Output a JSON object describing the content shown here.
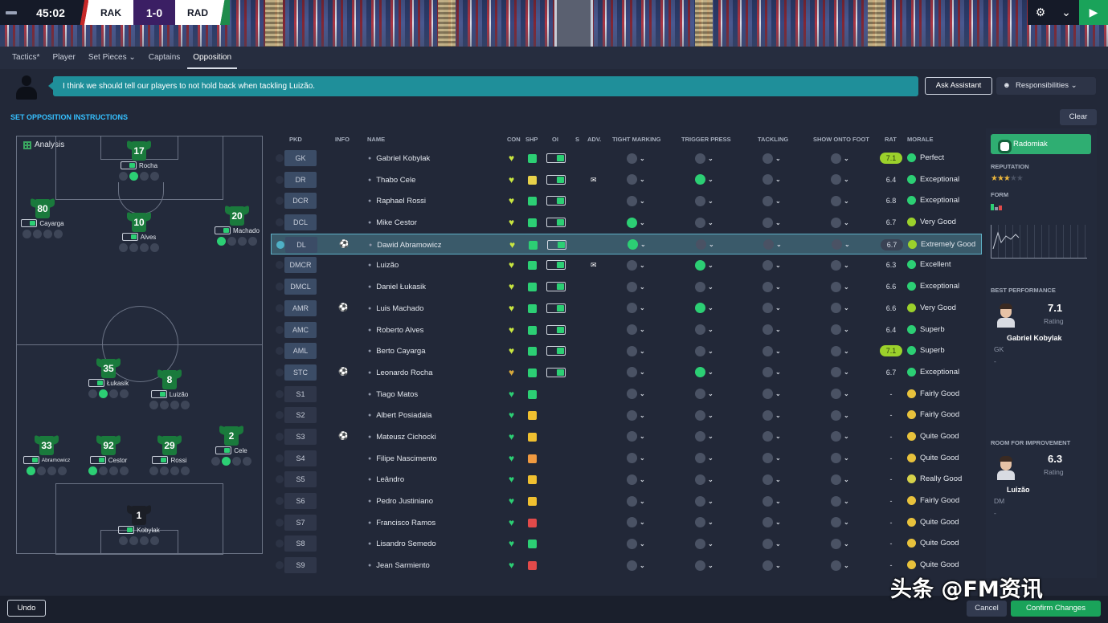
{
  "scorebar": {
    "time": "45:02",
    "home": "RAK",
    "score": "1-0",
    "away": "RAD"
  },
  "tabs": [
    "Tactics*",
    "Player",
    "Set Pieces ⌄",
    "Captains",
    "Opposition"
  ],
  "assistant": {
    "message": "I think we should tell our players to not hold back when tackling Luizão.",
    "ask_label": "Ask Assistant",
    "responsibilities_label": "Responsibilities ⌄"
  },
  "section_title": "SET OPPOSITION INSTRUCTIONS",
  "clear_label": "Clear",
  "pitch": {
    "label": "Analysis",
    "players": [
      {
        "num": "17",
        "name": "Rocha"
      },
      {
        "num": "80",
        "name": "Cayarga"
      },
      {
        "num": "10",
        "name": "Alves"
      },
      {
        "num": "20",
        "name": "Machado"
      },
      {
        "num": "35",
        "name": "Łukasik"
      },
      {
        "num": "8",
        "name": "Luizão"
      },
      {
        "num": "33",
        "name": "Abramowicz"
      },
      {
        "num": "92",
        "name": "Cestor"
      },
      {
        "num": "29",
        "name": "Rossi"
      },
      {
        "num": "2",
        "name": "Cele"
      },
      {
        "num": "1",
        "name": "Kobylak"
      }
    ]
  },
  "columns": {
    "pkd": "PKD",
    "info": "INFO",
    "name": "NAME",
    "con": "CON",
    "shp": "SHP",
    "oi": "OI",
    "s": "S",
    "adv": "ADV.",
    "tight": "TIGHT MARKING",
    "trigger": "TRIGGER PRESS",
    "tackling": "TACKLING",
    "foot": "SHOW ONTO FOOT",
    "rat": "RAT",
    "morale": "MORALE"
  },
  "rows": [
    {
      "pos": "GK",
      "name": "Gabriel Kobylak",
      "rat": "7.1",
      "morale": "Perfect"
    },
    {
      "pos": "DR",
      "name": "Thabo Cele",
      "rat": "6.4",
      "morale": "Exceptional"
    },
    {
      "pos": "DCR",
      "name": "Raphael Rossi",
      "rat": "6.8",
      "morale": "Exceptional"
    },
    {
      "pos": "DCL",
      "name": "Mike Cestor",
      "rat": "6.7",
      "morale": "Very Good"
    },
    {
      "pos": "DL",
      "name": "Dawid Abramowicz",
      "rat": "6.7",
      "morale": "Extremely Good"
    },
    {
      "pos": "DMCR",
      "name": "Luizão",
      "rat": "6.3",
      "morale": "Excellent"
    },
    {
      "pos": "DMCL",
      "name": "Daniel Łukasik",
      "rat": "6.6",
      "morale": "Exceptional"
    },
    {
      "pos": "AMR",
      "name": "Luis Machado",
      "rat": "6.6",
      "morale": "Very Good"
    },
    {
      "pos": "AMC",
      "name": "Roberto Alves",
      "rat": "6.4",
      "morale": "Superb"
    },
    {
      "pos": "AML",
      "name": "Berto Cayarga",
      "rat": "7.1",
      "morale": "Superb"
    },
    {
      "pos": "STC",
      "name": "Leonardo Rocha",
      "rat": "6.7",
      "morale": "Exceptional"
    },
    {
      "pos": "S1",
      "name": "Tiago Matos",
      "rat": "-",
      "morale": "Fairly Good"
    },
    {
      "pos": "S2",
      "name": "Albert Posiadala",
      "rat": "-",
      "morale": "Fairly Good"
    },
    {
      "pos": "S3",
      "name": "Mateusz Cichocki",
      "rat": "-",
      "morale": "Quite Good"
    },
    {
      "pos": "S4",
      "name": "Filipe Nascimento",
      "rat": "-",
      "morale": "Quite Good"
    },
    {
      "pos": "S5",
      "name": "Leândro",
      "rat": "-",
      "morale": "Really Good"
    },
    {
      "pos": "S6",
      "name": "Pedro Justiniano",
      "rat": "-",
      "morale": "Fairly Good"
    },
    {
      "pos": "S7",
      "name": "Francisco Ramos",
      "rat": "-",
      "morale": "Quite Good"
    },
    {
      "pos": "S8",
      "name": "Lisandro Semedo",
      "rat": "-",
      "morale": "Quite Good"
    },
    {
      "pos": "S9",
      "name": "Jean Sarmiento",
      "rat": "-",
      "morale": "Quite Good"
    }
  ],
  "right_panel": {
    "club": "Radomiak",
    "reputation_label": "REPUTATION",
    "form_label": "FORM",
    "best_label": "BEST PERFORMANCE",
    "best": {
      "rating": "7.1",
      "rating_label": "Rating",
      "name": "Gabriel Kobylak",
      "pos": "GK",
      "extra": "-"
    },
    "improve_label": "ROOM FOR IMPROVEMENT",
    "improve": {
      "rating": "6.3",
      "rating_label": "Rating",
      "name": "Luizão",
      "pos": "DM",
      "extra": "-"
    }
  },
  "bottom": {
    "undo": "Undo",
    "cancel": "Cancel",
    "confirm": "Confirm Changes"
  },
  "watermark": "头条 @FM资讯",
  "colors": {
    "accent_green": "#1aa35a",
    "teal": "#1f8f9a",
    "heading_blue": "#35c0ff"
  }
}
